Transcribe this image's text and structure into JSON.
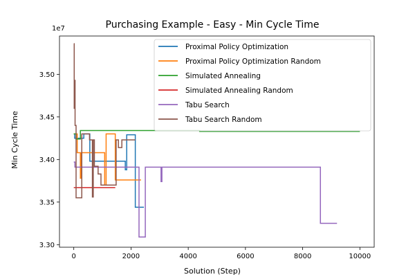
{
  "chart_data": {
    "type": "line",
    "title": "Purchasing Example - Easy - Min Cycle Time",
    "xlabel": "Solution (Step)",
    "ylabel": "Min Cycle Time",
    "y_offset_label": "1e7",
    "xlim": [
      -500,
      10500
    ],
    "ylim": [
      3.297,
      3.545
    ],
    "x_ticks": [
      0,
      2000,
      4000,
      6000,
      8000,
      10000
    ],
    "x_tick_labels": [
      "0",
      "2000",
      "4000",
      "6000",
      "8000",
      "10000"
    ],
    "y_ticks": [
      3.3,
      3.35,
      3.4,
      3.45,
      3.5
    ],
    "y_tick_labels": [
      "3.30",
      "3.35",
      "3.40",
      "3.45",
      "3.50"
    ],
    "grid": false,
    "legend_position": "top-right",
    "series": [
      {
        "name": "Proximal Policy Optimization",
        "color": "#1f77b4",
        "x": [
          0,
          30,
          30,
          350,
          350,
          560,
          560,
          1800,
          1800,
          1850,
          1850,
          2150,
          2150,
          2450
        ],
        "y": [
          3.43,
          3.43,
          3.425,
          3.425,
          3.43,
          3.43,
          3.398,
          3.398,
          3.388,
          3.388,
          3.429,
          3.429,
          3.344,
          3.344
        ]
      },
      {
        "name": "Proximal Policy Optimization Random",
        "color": "#ff7f0e",
        "x": [
          0,
          120,
          120,
          230,
          230,
          260,
          260,
          1080,
          1080,
          1130,
          1130,
          1450,
          1450,
          2350
        ],
        "y": [
          3.43,
          3.43,
          3.408,
          3.408,
          3.378,
          3.378,
          3.408,
          3.408,
          3.37,
          3.37,
          3.43,
          3.43,
          3.376,
          3.376
        ]
      },
      {
        "name": "Simulated Annealing",
        "color": "#2ca02c",
        "x": [
          0,
          80,
          80,
          230,
          230,
          4400,
          4400,
          10000
        ],
        "y": [
          3.43,
          3.43,
          3.424,
          3.424,
          3.434,
          3.434,
          3.433,
          3.433
        ]
      },
      {
        "name": "Simulated Annealing Random",
        "color": "#d62728",
        "x": [
          0,
          1450
        ],
        "y": [
          3.367,
          3.367
        ]
      },
      {
        "name": "Tabu Search",
        "color": "#9467bd",
        "x": [
          0,
          40,
          40,
          2280,
          2280,
          2500,
          2500,
          3050,
          3050,
          3080,
          3080,
          8620,
          8620,
          9200
        ],
        "y": [
          3.397,
          3.397,
          3.391,
          3.391,
          3.309,
          3.309,
          3.391,
          3.391,
          3.374,
          3.374,
          3.391,
          3.391,
          3.325,
          3.325
        ]
      },
      {
        "name": "Tabu Search Random",
        "color": "#8c564b",
        "x": [
          0,
          15,
          15,
          30,
          30,
          45,
          45,
          80,
          80,
          280,
          280,
          300,
          300,
          550,
          550,
          650,
          650,
          680,
          680,
          720,
          720,
          850,
          850,
          950,
          950,
          1050,
          1050,
          1480,
          1480,
          1560,
          1560,
          1680,
          1680,
          1700,
          1700,
          2150
        ],
        "y": [
          3.536,
          3.536,
          3.46,
          3.46,
          3.493,
          3.493,
          3.44,
          3.44,
          3.355,
          3.355,
          3.43,
          3.43,
          3.43,
          3.43,
          3.423,
          3.423,
          3.356,
          3.356,
          3.423,
          3.423,
          3.392,
          3.392,
          3.383,
          3.383,
          3.37,
          3.37,
          3.37,
          3.37,
          3.423,
          3.423,
          3.414,
          3.414,
          3.423,
          3.423,
          3.423,
          3.423
        ]
      }
    ]
  }
}
